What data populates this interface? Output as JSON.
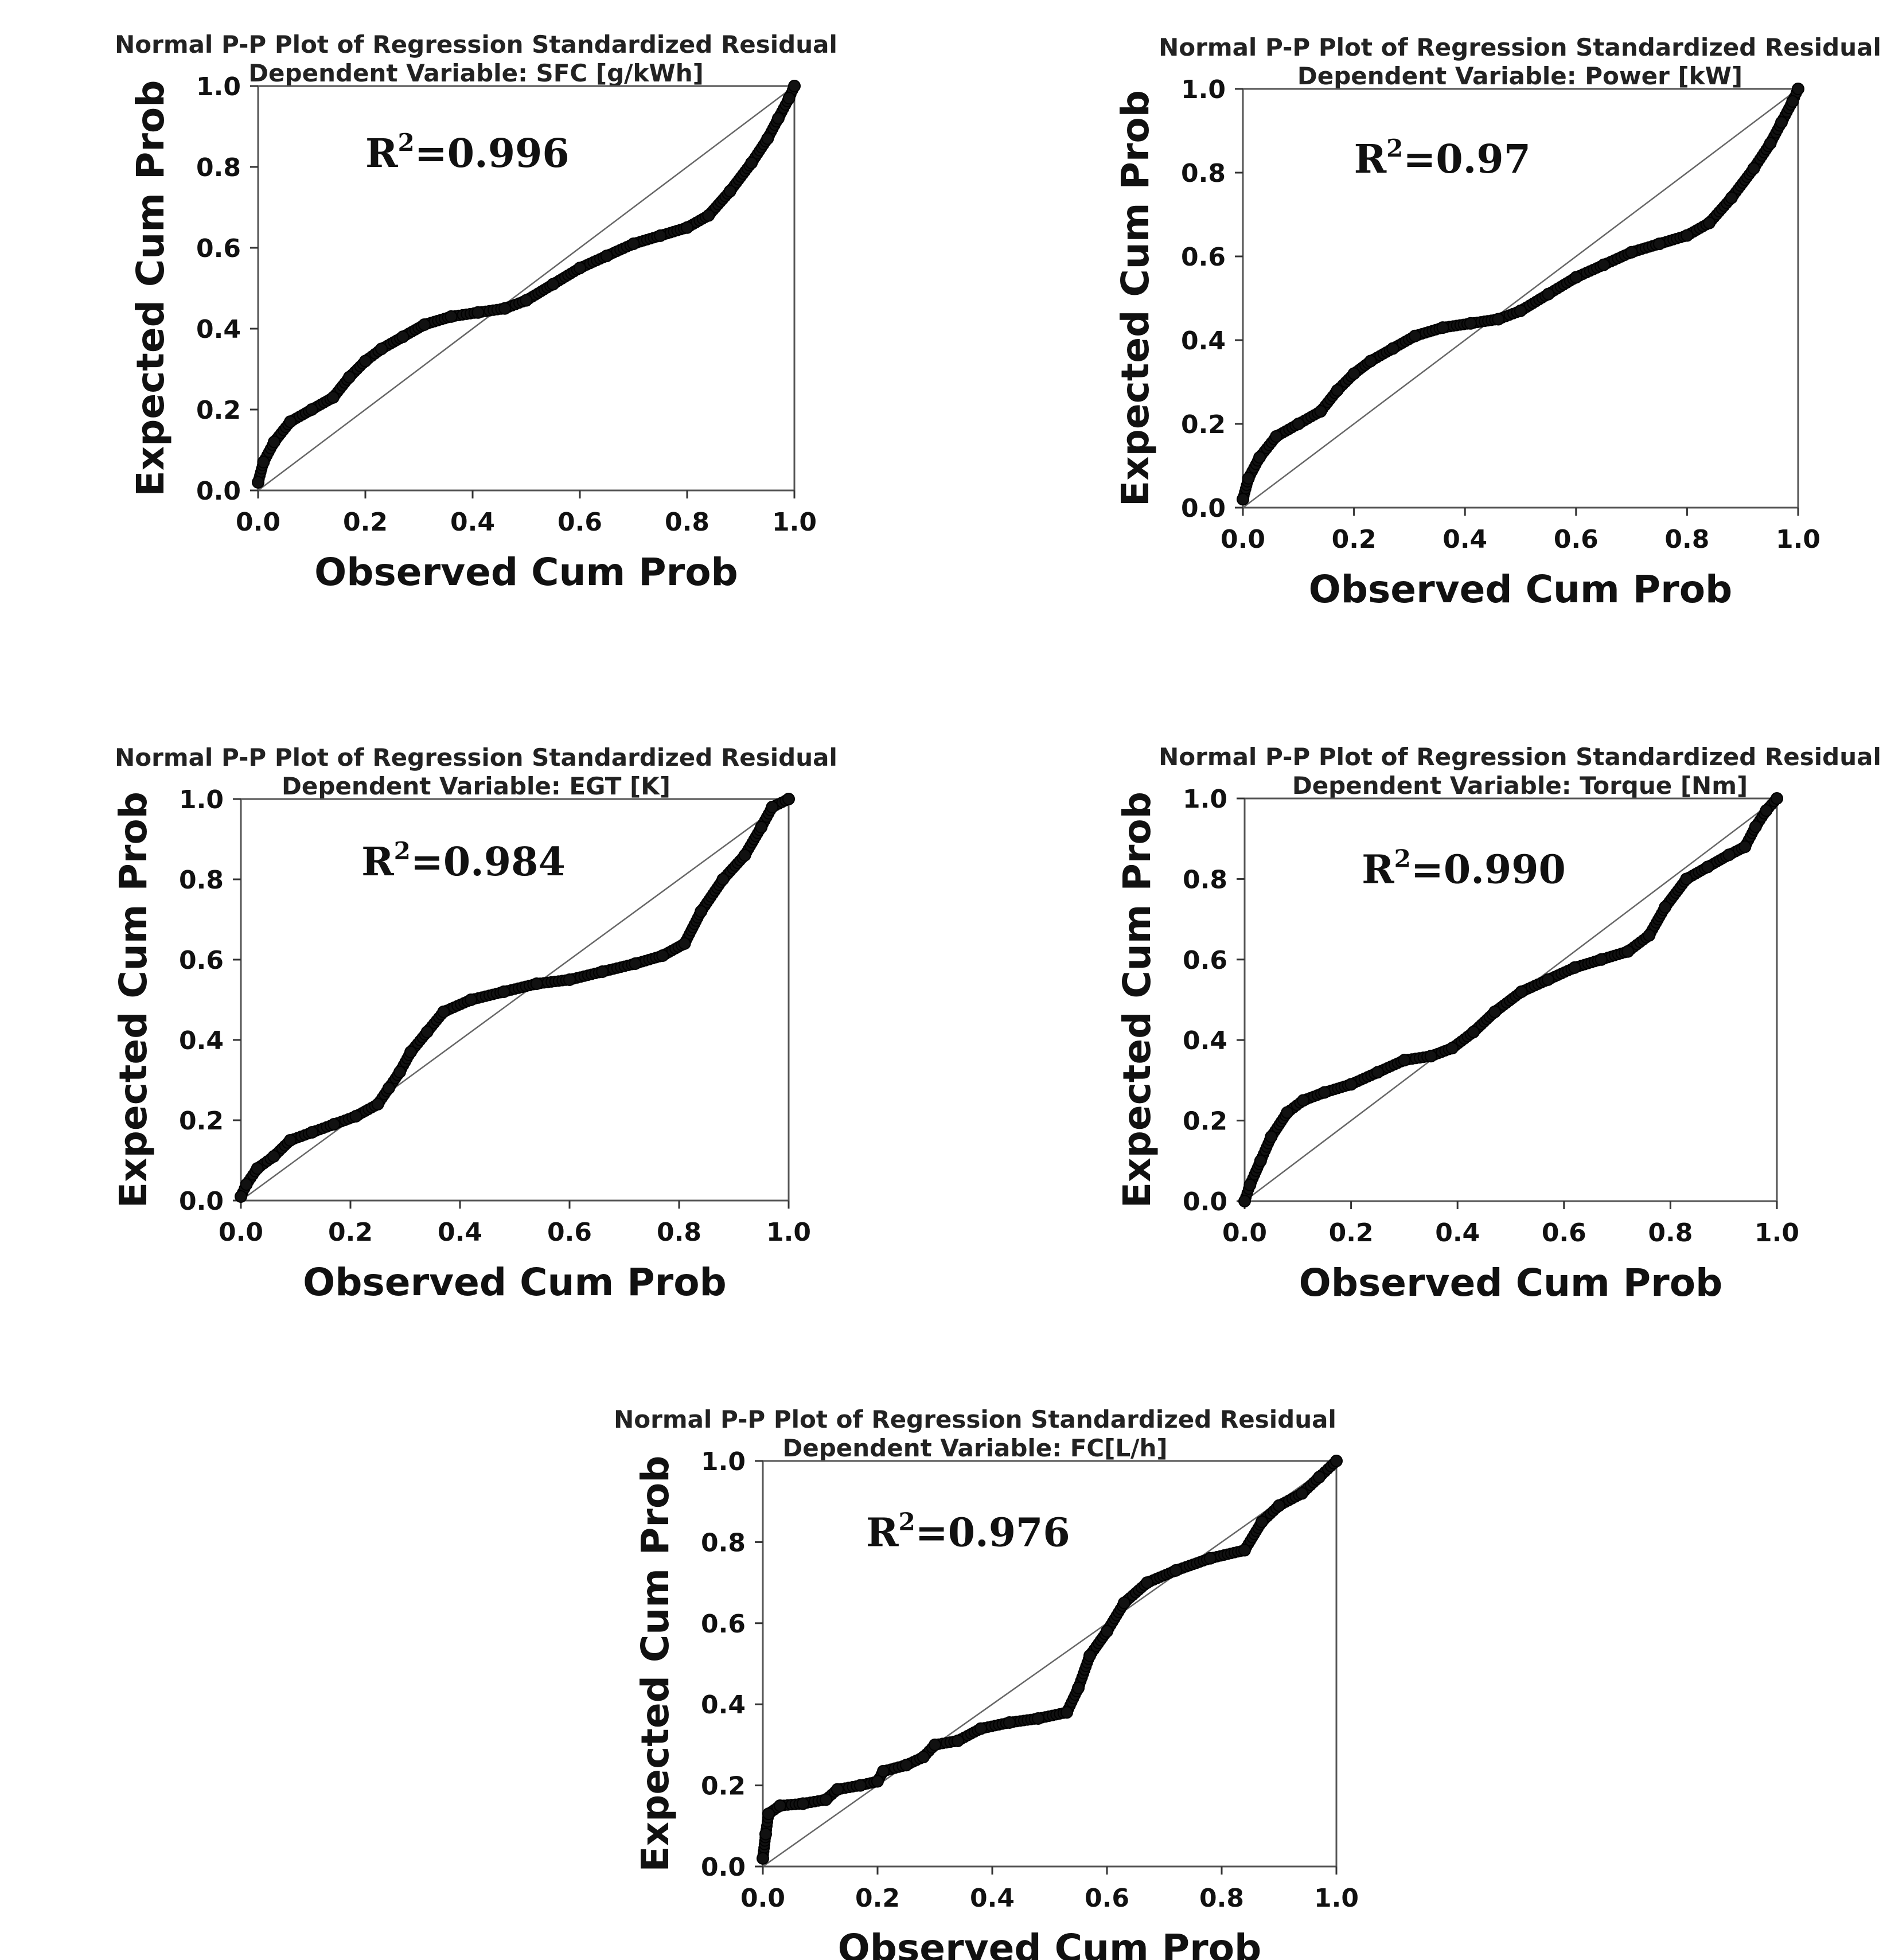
{
  "chart_data": [
    {
      "type": "scatter",
      "title": "Normal P-P Plot of Regression Standardized Residual",
      "subtitle": "Dependent Variable: SFC [g/kWh]",
      "xlabel": "Observed Cum Prob",
      "ylabel": "Expected Cum Prob",
      "xlim": [
        0.0,
        1.0
      ],
      "ylim": [
        0.0,
        1.0
      ],
      "xticks": [
        "0.0",
        "0.2",
        "0.4",
        "0.6",
        "0.8",
        "1.0"
      ],
      "yticks": [
        "0.0",
        "0.2",
        "0.4",
        "0.6",
        "0.8",
        "1.0"
      ],
      "annotation": {
        "base": "R",
        "sup": "2",
        "value": "=0.996"
      },
      "reference_line": [
        [
          0,
          0
        ],
        [
          1,
          1
        ]
      ],
      "points": [
        [
          0,
          0.02
        ],
        [
          0.01,
          0.07
        ],
        [
          0.03,
          0.12
        ],
        [
          0.06,
          0.17
        ],
        [
          0.1,
          0.2
        ],
        [
          0.14,
          0.23
        ],
        [
          0.17,
          0.28
        ],
        [
          0.2,
          0.32
        ],
        [
          0.23,
          0.35
        ],
        [
          0.27,
          0.38
        ],
        [
          0.31,
          0.41
        ],
        [
          0.36,
          0.43
        ],
        [
          0.41,
          0.44
        ],
        [
          0.46,
          0.45
        ],
        [
          0.5,
          0.47
        ],
        [
          0.55,
          0.51
        ],
        [
          0.6,
          0.55
        ],
        [
          0.65,
          0.58
        ],
        [
          0.7,
          0.61
        ],
        [
          0.75,
          0.63
        ],
        [
          0.8,
          0.65
        ],
        [
          0.84,
          0.68
        ],
        [
          0.88,
          0.74
        ],
        [
          0.92,
          0.81
        ],
        [
          0.95,
          0.87
        ],
        [
          0.97,
          0.92
        ],
        [
          0.99,
          0.97
        ],
        [
          1.0,
          1.0
        ]
      ]
    },
    {
      "type": "scatter",
      "title": "Normal P-P Plot of Regression Standardized Residual",
      "subtitle": "Dependent Variable: Power [kW]",
      "xlabel": "Observed Cum Prob",
      "ylabel": "Expected Cum Prob",
      "xlim": [
        0.0,
        1.0
      ],
      "ylim": [
        0.0,
        1.0
      ],
      "xticks": [
        "0.0",
        "0.2",
        "0.4",
        "0.6",
        "0.8",
        "1.0"
      ],
      "yticks": [
        "0.0",
        "0.2",
        "0.4",
        "0.6",
        "0.8",
        "1.0"
      ],
      "annotation": {
        "base": "R",
        "sup": "2",
        "value": "=0.97"
      },
      "reference_line": [
        [
          0,
          0
        ],
        [
          1,
          1
        ]
      ],
      "points": [
        [
          0,
          0.02
        ],
        [
          0.01,
          0.07
        ],
        [
          0.03,
          0.12
        ],
        [
          0.06,
          0.17
        ],
        [
          0.1,
          0.2
        ],
        [
          0.14,
          0.23
        ],
        [
          0.17,
          0.28
        ],
        [
          0.2,
          0.32
        ],
        [
          0.23,
          0.35
        ],
        [
          0.27,
          0.38
        ],
        [
          0.31,
          0.41
        ],
        [
          0.36,
          0.43
        ],
        [
          0.41,
          0.44
        ],
        [
          0.46,
          0.45
        ],
        [
          0.5,
          0.47
        ],
        [
          0.55,
          0.51
        ],
        [
          0.6,
          0.55
        ],
        [
          0.65,
          0.58
        ],
        [
          0.7,
          0.61
        ],
        [
          0.75,
          0.63
        ],
        [
          0.8,
          0.65
        ],
        [
          0.84,
          0.68
        ],
        [
          0.88,
          0.74
        ],
        [
          0.92,
          0.81
        ],
        [
          0.95,
          0.87
        ],
        [
          0.97,
          0.92
        ],
        [
          0.99,
          0.97
        ],
        [
          1.0,
          1.0
        ]
      ]
    },
    {
      "type": "scatter",
      "title": "Normal P-P Plot of Regression Standardized Residual",
      "subtitle": "Dependent Variable: EGT [K]",
      "xlabel": "Observed Cum Prob",
      "ylabel": "Expected Cum Prob",
      "xlim": [
        0.0,
        1.0
      ],
      "ylim": [
        0.0,
        1.0
      ],
      "xticks": [
        "0.0",
        "0.2",
        "0.4",
        "0.6",
        "0.8",
        "1.0"
      ],
      "yticks": [
        "0.0",
        "0.2",
        "0.4",
        "0.6",
        "0.8",
        "1.0"
      ],
      "annotation": {
        "base": "R",
        "sup": "2",
        "value": "=0.984"
      },
      "reference_line": [
        [
          0,
          0
        ],
        [
          1,
          1
        ]
      ],
      "points": [
        [
          0,
          0.01
        ],
        [
          0.01,
          0.04
        ],
        [
          0.03,
          0.08
        ],
        [
          0.06,
          0.11
        ],
        [
          0.09,
          0.15
        ],
        [
          0.13,
          0.17
        ],
        [
          0.17,
          0.19
        ],
        [
          0.21,
          0.21
        ],
        [
          0.25,
          0.24
        ],
        [
          0.27,
          0.28
        ],
        [
          0.29,
          0.32
        ],
        [
          0.31,
          0.37
        ],
        [
          0.34,
          0.42
        ],
        [
          0.37,
          0.47
        ],
        [
          0.42,
          0.5
        ],
        [
          0.48,
          0.52
        ],
        [
          0.54,
          0.54
        ],
        [
          0.6,
          0.55
        ],
        [
          0.66,
          0.57
        ],
        [
          0.72,
          0.59
        ],
        [
          0.77,
          0.61
        ],
        [
          0.81,
          0.64
        ],
        [
          0.84,
          0.72
        ],
        [
          0.88,
          0.8
        ],
        [
          0.92,
          0.86
        ],
        [
          0.95,
          0.93
        ],
        [
          0.97,
          0.98
        ],
        [
          1.0,
          1.0
        ]
      ]
    },
    {
      "type": "scatter",
      "title": "Normal P-P Plot of Regression Standardized Residual",
      "subtitle": "Dependent Variable: Torque [Nm]",
      "xlabel": "Observed Cum Prob",
      "ylabel": "Expected Cum Prob",
      "xlim": [
        0.0,
        1.0
      ],
      "ylim": [
        0.0,
        1.0
      ],
      "xticks": [
        "0.0",
        "0.2",
        "0.4",
        "0.6",
        "0.8",
        "1.0"
      ],
      "yticks": [
        "0.0",
        "0.2",
        "0.4",
        "0.6",
        "0.8",
        "1.0"
      ],
      "annotation": {
        "base": "R",
        "sup": "2",
        "value": "=0.990"
      },
      "reference_line": [
        [
          0,
          0
        ],
        [
          1,
          1
        ]
      ],
      "points": [
        [
          0,
          0.0
        ],
        [
          0.01,
          0.04
        ],
        [
          0.03,
          0.1
        ],
        [
          0.05,
          0.16
        ],
        [
          0.08,
          0.22
        ],
        [
          0.11,
          0.25
        ],
        [
          0.15,
          0.27
        ],
        [
          0.2,
          0.29
        ],
        [
          0.25,
          0.32
        ],
        [
          0.3,
          0.35
        ],
        [
          0.35,
          0.36
        ],
        [
          0.39,
          0.38
        ],
        [
          0.43,
          0.42
        ],
        [
          0.47,
          0.47
        ],
        [
          0.52,
          0.52
        ],
        [
          0.57,
          0.55
        ],
        [
          0.62,
          0.58
        ],
        [
          0.67,
          0.6
        ],
        [
          0.72,
          0.62
        ],
        [
          0.76,
          0.66
        ],
        [
          0.79,
          0.73
        ],
        [
          0.83,
          0.8
        ],
        [
          0.87,
          0.83
        ],
        [
          0.91,
          0.86
        ],
        [
          0.94,
          0.88
        ],
        [
          0.96,
          0.93
        ],
        [
          0.98,
          0.97
        ],
        [
          1.0,
          1.0
        ]
      ]
    },
    {
      "type": "scatter",
      "title": "Normal P-P Plot of Regression Standardized Residual",
      "subtitle": "Dependent Variable: FC[L/h]",
      "xlabel": "Observed Cum Prob",
      "ylabel": "Expected Cum Prob",
      "xlim": [
        0.0,
        1.0
      ],
      "ylim": [
        0.0,
        1.0
      ],
      "xticks": [
        "0.0",
        "0.2",
        "0.4",
        "0.6",
        "0.8",
        "1.0"
      ],
      "yticks": [
        "0.0",
        "0.2",
        "0.4",
        "0.6",
        "0.8",
        "1.0"
      ],
      "annotation": {
        "base": "R",
        "sup": "2",
        "value": "=0.976"
      },
      "reference_line": [
        [
          0,
          0
        ],
        [
          1,
          1
        ]
      ],
      "points": [
        [
          0,
          0.02
        ],
        [
          0.005,
          0.08
        ],
        [
          0.01,
          0.13
        ],
        [
          0.03,
          0.15
        ],
        [
          0.07,
          0.155
        ],
        [
          0.11,
          0.165
        ],
        [
          0.13,
          0.19
        ],
        [
          0.17,
          0.2
        ],
        [
          0.2,
          0.21
        ],
        [
          0.21,
          0.235
        ],
        [
          0.25,
          0.25
        ],
        [
          0.28,
          0.27
        ],
        [
          0.3,
          0.3
        ],
        [
          0.34,
          0.31
        ],
        [
          0.38,
          0.34
        ],
        [
          0.43,
          0.355
        ],
        [
          0.48,
          0.365
        ],
        [
          0.53,
          0.38
        ],
        [
          0.55,
          0.44
        ],
        [
          0.57,
          0.52
        ],
        [
          0.6,
          0.58
        ],
        [
          0.63,
          0.65
        ],
        [
          0.67,
          0.7
        ],
        [
          0.72,
          0.73
        ],
        [
          0.78,
          0.76
        ],
        [
          0.84,
          0.78
        ],
        [
          0.87,
          0.85
        ],
        [
          0.9,
          0.89
        ],
        [
          0.94,
          0.92
        ],
        [
          0.97,
          0.96
        ],
        [
          1.0,
          1.0
        ]
      ]
    }
  ]
}
